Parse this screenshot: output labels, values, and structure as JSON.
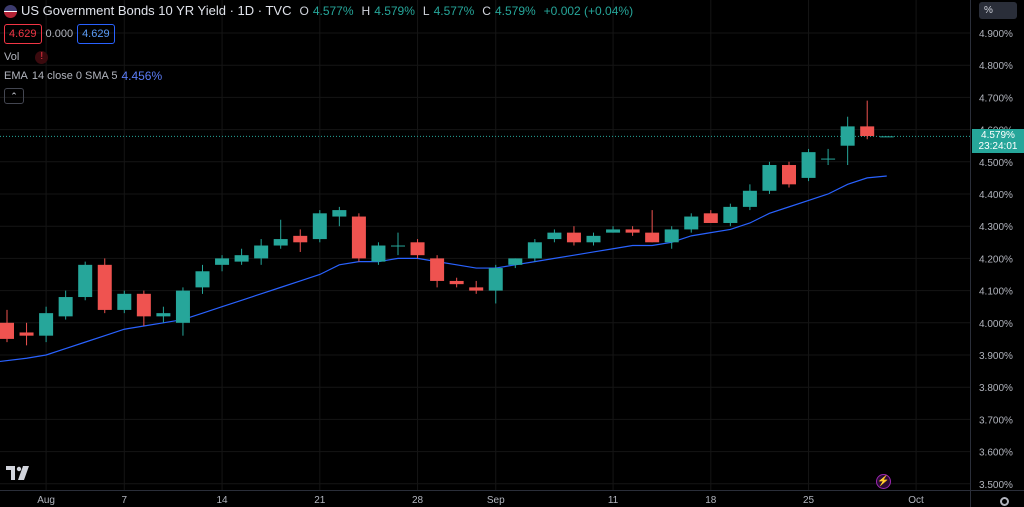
{
  "legend": {
    "title": "US Government Bonds 10 YR Yield · 1D · TVC",
    "o_label": "O",
    "o_value": "4.577%",
    "h_label": "H",
    "h_value": "4.579%",
    "l_label": "L",
    "l_value": "4.577%",
    "c_label": "C",
    "c_value": "4.579%",
    "change": "+0.002 (+0.04%)",
    "sell_price": "4.629",
    "spread": "0.000",
    "buy_price": "4.629",
    "vol_label": "Vol",
    "ema_label": "EMA",
    "ema_params": "14 close 0 SMA 5",
    "ema_value": "4.456%"
  },
  "axis_unit": "%",
  "last_price": {
    "value": "4.579%",
    "countdown": "23:24:01"
  },
  "colors": {
    "up": "#26a69a",
    "down": "#ef5350",
    "ema": "#2962ff",
    "background": "#000000"
  },
  "chart_data": {
    "type": "candlestick",
    "y_axis": {
      "min": 3.48,
      "max": 4.98,
      "ticks": [
        "4.900%",
        "4.800%",
        "4.700%",
        "4.600%",
        "4.500%",
        "4.400%",
        "4.300%",
        "4.200%",
        "4.100%",
        "4.000%",
        "3.900%",
        "3.800%",
        "3.700%",
        "3.600%",
        "3.500%"
      ]
    },
    "x_axis": {
      "ticks": [
        "Aug",
        "7",
        "14",
        "21",
        "28",
        "Sep",
        "11",
        "18",
        "25",
        "Oct"
      ]
    },
    "grid": true,
    "candles": [
      {
        "o": 4.0,
        "h": 4.04,
        "l": 3.94,
        "c": 3.95
      },
      {
        "o": 3.97,
        "h": 4.0,
        "l": 3.93,
        "c": 3.96
      },
      {
        "o": 3.96,
        "h": 4.05,
        "l": 3.94,
        "c": 4.03
      },
      {
        "o": 4.02,
        "h": 4.1,
        "l": 4.01,
        "c": 4.08
      },
      {
        "o": 4.08,
        "h": 4.19,
        "l": 4.07,
        "c": 4.18
      },
      {
        "o": 4.18,
        "h": 4.2,
        "l": 4.03,
        "c": 4.04
      },
      {
        "o": 4.04,
        "h": 4.1,
        "l": 4.03,
        "c": 4.09
      },
      {
        "o": 4.09,
        "h": 4.1,
        "l": 3.99,
        "c": 4.02
      },
      {
        "o": 4.02,
        "h": 4.05,
        "l": 4.0,
        "c": 4.03
      },
      {
        "o": 4.0,
        "h": 4.11,
        "l": 3.96,
        "c": 4.1
      },
      {
        "o": 4.11,
        "h": 4.18,
        "l": 4.09,
        "c": 4.16
      },
      {
        "o": 4.18,
        "h": 4.21,
        "l": 4.16,
        "c": 4.2
      },
      {
        "o": 4.19,
        "h": 4.23,
        "l": 4.18,
        "c": 4.21
      },
      {
        "o": 4.2,
        "h": 4.26,
        "l": 4.18,
        "c": 4.24
      },
      {
        "o": 4.24,
        "h": 4.32,
        "l": 4.23,
        "c": 4.26
      },
      {
        "o": 4.27,
        "h": 4.29,
        "l": 4.22,
        "c": 4.25
      },
      {
        "o": 4.26,
        "h": 4.35,
        "l": 4.25,
        "c": 4.34
      },
      {
        "o": 4.33,
        "h": 4.36,
        "l": 4.3,
        "c": 4.35
      },
      {
        "o": 4.33,
        "h": 4.34,
        "l": 4.19,
        "c": 4.2
      },
      {
        "o": 4.19,
        "h": 4.25,
        "l": 4.18,
        "c": 4.24
      },
      {
        "o": 4.24,
        "h": 4.28,
        "l": 4.21,
        "c": 4.24
      },
      {
        "o": 4.25,
        "h": 4.26,
        "l": 4.2,
        "c": 4.21
      },
      {
        "o": 4.2,
        "h": 4.21,
        "l": 4.11,
        "c": 4.13
      },
      {
        "o": 4.13,
        "h": 4.14,
        "l": 4.11,
        "c": 4.12
      },
      {
        "o": 4.11,
        "h": 4.13,
        "l": 4.09,
        "c": 4.1
      },
      {
        "o": 4.1,
        "h": 4.18,
        "l": 4.06,
        "c": 4.17
      },
      {
        "o": 4.18,
        "h": 4.2,
        "l": 4.17,
        "c": 4.2
      },
      {
        "o": 4.2,
        "h": 4.26,
        "l": 4.19,
        "c": 4.25
      },
      {
        "o": 4.26,
        "h": 4.29,
        "l": 4.25,
        "c": 4.28
      },
      {
        "o": 4.28,
        "h": 4.3,
        "l": 4.24,
        "c": 4.25
      },
      {
        "o": 4.25,
        "h": 4.28,
        "l": 4.24,
        "c": 4.27
      },
      {
        "o": 4.28,
        "h": 4.3,
        "l": 4.28,
        "c": 4.29
      },
      {
        "o": 4.29,
        "h": 4.3,
        "l": 4.27,
        "c": 4.28
      },
      {
        "o": 4.28,
        "h": 4.35,
        "l": 4.25,
        "c": 4.25
      },
      {
        "o": 4.25,
        "h": 4.3,
        "l": 4.23,
        "c": 4.29
      },
      {
        "o": 4.29,
        "h": 4.34,
        "l": 4.28,
        "c": 4.33
      },
      {
        "o": 4.34,
        "h": 4.35,
        "l": 4.31,
        "c": 4.31
      },
      {
        "o": 4.31,
        "h": 4.37,
        "l": 4.3,
        "c": 4.36
      },
      {
        "o": 4.36,
        "h": 4.43,
        "l": 4.35,
        "c": 4.41
      },
      {
        "o": 4.41,
        "h": 4.5,
        "l": 4.4,
        "c": 4.49
      },
      {
        "o": 4.49,
        "h": 4.5,
        "l": 4.42,
        "c": 4.43
      },
      {
        "o": 4.45,
        "h": 4.54,
        "l": 4.44,
        "c": 4.53
      },
      {
        "o": 4.51,
        "h": 4.54,
        "l": 4.49,
        "c": 4.51
      },
      {
        "o": 4.55,
        "h": 4.64,
        "l": 4.49,
        "c": 4.61
      },
      {
        "o": 4.61,
        "h": 4.69,
        "l": 4.57,
        "c": 4.58
      },
      {
        "o": 4.577,
        "h": 4.579,
        "l": 4.577,
        "c": 4.579
      }
    ],
    "ema": [
      3.88,
      3.89,
      3.9,
      3.92,
      3.94,
      3.96,
      3.98,
      3.99,
      4.0,
      4.01,
      4.03,
      4.05,
      4.07,
      4.09,
      4.11,
      4.13,
      4.15,
      4.18,
      4.19,
      4.19,
      4.2,
      4.2,
      4.19,
      4.18,
      4.17,
      4.17,
      4.18,
      4.19,
      4.2,
      4.21,
      4.22,
      4.23,
      4.24,
      4.24,
      4.25,
      4.27,
      4.28,
      4.29,
      4.31,
      4.34,
      4.36,
      4.38,
      4.4,
      4.43,
      4.45,
      4.456
    ]
  }
}
